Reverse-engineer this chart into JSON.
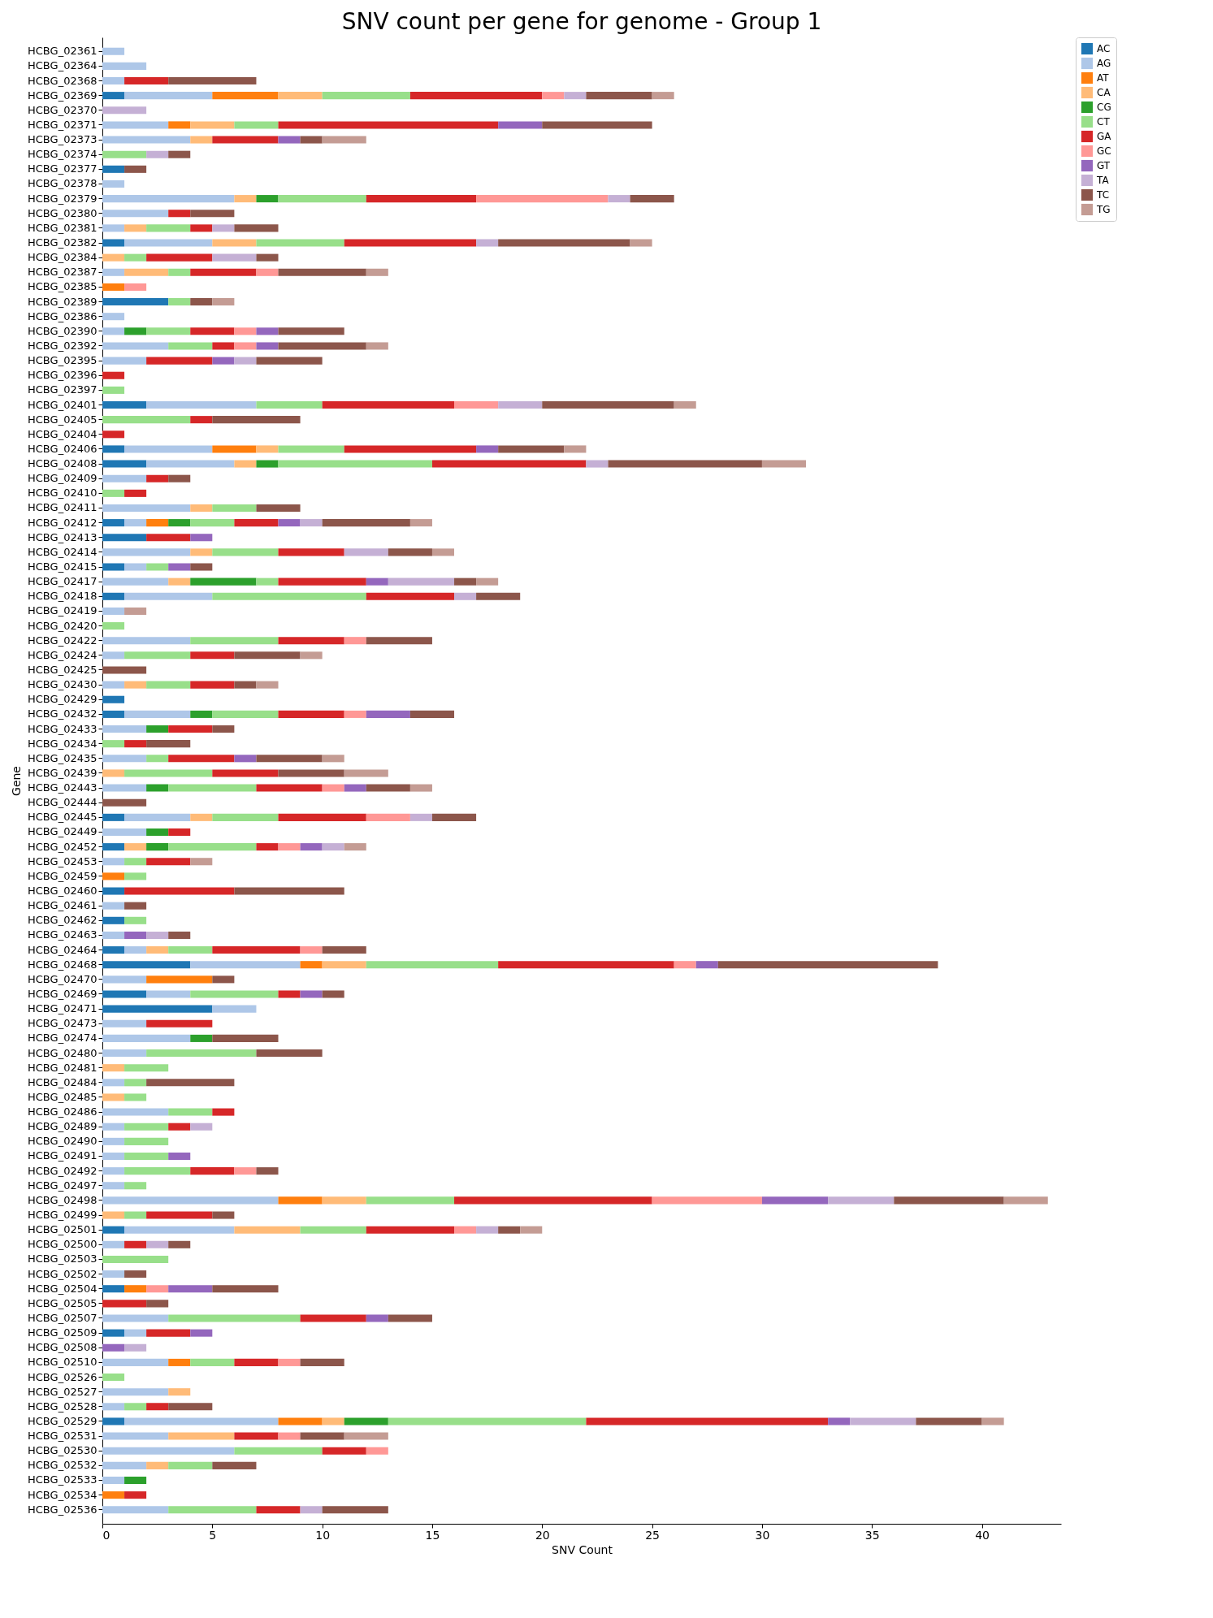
{
  "chart_data": {
    "type": "bar",
    "title": "SNV count per gene for genome - Group 1",
    "xlabel": "SNV Count",
    "ylabel": "Gene",
    "orientation": "horizontal",
    "stacked": true,
    "grid": false,
    "legend": "top right",
    "xlim": [
      0,
      43.6
    ],
    "xticks": [
      0,
      5,
      10,
      15,
      20,
      25,
      30,
      35,
      40
    ],
    "categories": [
      "HCBG_02361",
      "HCBG_02364",
      "HCBG_02368",
      "HCBG_02369",
      "HCBG_02370",
      "HCBG_02371",
      "HCBG_02373",
      "HCBG_02374",
      "HCBG_02377",
      "HCBG_02378",
      "HCBG_02379",
      "HCBG_02380",
      "HCBG_02381",
      "HCBG_02382",
      "HCBG_02384",
      "HCBG_02387",
      "HCBG_02385",
      "HCBG_02389",
      "HCBG_02386",
      "HCBG_02390",
      "HCBG_02392",
      "HCBG_02395",
      "HCBG_02396",
      "HCBG_02397",
      "HCBG_02401",
      "HCBG_02405",
      "HCBG_02404",
      "HCBG_02406",
      "HCBG_02408",
      "HCBG_02409",
      "HCBG_02410",
      "HCBG_02411",
      "HCBG_02412",
      "HCBG_02413",
      "HCBG_02414",
      "HCBG_02415",
      "HCBG_02417",
      "HCBG_02418",
      "HCBG_02419",
      "HCBG_02420",
      "HCBG_02422",
      "HCBG_02424",
      "HCBG_02425",
      "HCBG_02430",
      "HCBG_02429",
      "HCBG_02432",
      "HCBG_02433",
      "HCBG_02434",
      "HCBG_02435",
      "HCBG_02439",
      "HCBG_02443",
      "HCBG_02444",
      "HCBG_02445",
      "HCBG_02449",
      "HCBG_02452",
      "HCBG_02453",
      "HCBG_02459",
      "HCBG_02460",
      "HCBG_02461",
      "HCBG_02462",
      "HCBG_02463",
      "HCBG_02464",
      "HCBG_02468",
      "HCBG_02470",
      "HCBG_02469",
      "HCBG_02471",
      "HCBG_02473",
      "HCBG_02474",
      "HCBG_02480",
      "HCBG_02481",
      "HCBG_02484",
      "HCBG_02485",
      "HCBG_02486",
      "HCBG_02489",
      "HCBG_02490",
      "HCBG_02491",
      "HCBG_02492",
      "HCBG_02497",
      "HCBG_02498",
      "HCBG_02499",
      "HCBG_02501",
      "HCBG_02500",
      "HCBG_02503",
      "HCBG_02502",
      "HCBG_02504",
      "HCBG_02505",
      "HCBG_02507",
      "HCBG_02509",
      "HCBG_02508",
      "HCBG_02510",
      "HCBG_02526",
      "HCBG_02527",
      "HCBG_02528",
      "HCBG_02529",
      "HCBG_02531",
      "HCBG_02530",
      "HCBG_02532",
      "HCBG_02533",
      "HCBG_02534",
      "HCBG_02536"
    ],
    "series": [
      {
        "name": "AC",
        "color": "#1f77b4",
        "values": [
          null,
          null,
          null,
          1,
          null,
          null,
          null,
          null,
          1,
          null,
          null,
          null,
          null,
          1,
          null,
          null,
          null,
          3,
          null,
          null,
          null,
          null,
          null,
          null,
          2,
          null,
          null,
          1,
          2,
          null,
          null,
          null,
          1,
          2,
          null,
          1,
          null,
          1,
          null,
          null,
          null,
          null,
          null,
          null,
          1,
          1,
          null,
          null,
          null,
          null,
          null,
          null,
          1,
          null,
          1,
          null,
          null,
          1,
          null,
          1,
          null,
          1,
          4,
          null,
          2,
          5,
          null,
          null,
          null,
          null,
          null,
          null,
          null,
          null,
          null,
          null,
          null,
          null,
          null,
          null,
          1,
          null,
          null,
          null,
          1,
          null,
          null,
          1,
          null,
          null,
          null,
          null,
          null,
          1,
          null,
          null,
          null,
          null,
          null,
          null
        ]
      },
      {
        "name": "AG",
        "color": "#aec7e8",
        "values": [
          1,
          2,
          1,
          4,
          null,
          3,
          4,
          null,
          null,
          1,
          6,
          3,
          1,
          4,
          null,
          1,
          null,
          null,
          1,
          1,
          3,
          2,
          null,
          null,
          5,
          null,
          null,
          4,
          4,
          2,
          null,
          4,
          1,
          null,
          4,
          1,
          3,
          4,
          1,
          null,
          4,
          1,
          null,
          1,
          null,
          3,
          2,
          null,
          2,
          null,
          2,
          null,
          3,
          2,
          null,
          1,
          null,
          null,
          1,
          null,
          1,
          1,
          5,
          2,
          2,
          2,
          2,
          4,
          2,
          null,
          1,
          null,
          3,
          1,
          1,
          1,
          1,
          1,
          8,
          null,
          5,
          1,
          null,
          1,
          null,
          null,
          3,
          1,
          null,
          3,
          null,
          3,
          1,
          7,
          3,
          6,
          2,
          1,
          null,
          3
        ]
      },
      {
        "name": "AT",
        "color": "#ff7f0e",
        "values": [
          null,
          null,
          null,
          3,
          null,
          1,
          null,
          null,
          null,
          null,
          null,
          null,
          null,
          null,
          null,
          null,
          1,
          null,
          null,
          null,
          null,
          null,
          null,
          null,
          null,
          null,
          null,
          2,
          null,
          null,
          null,
          null,
          1,
          null,
          null,
          null,
          null,
          null,
          null,
          null,
          null,
          null,
          null,
          null,
          null,
          null,
          null,
          null,
          null,
          null,
          null,
          null,
          null,
          null,
          null,
          null,
          1,
          null,
          null,
          null,
          null,
          null,
          1,
          3,
          null,
          null,
          null,
          null,
          null,
          null,
          null,
          null,
          null,
          null,
          null,
          null,
          null,
          null,
          2,
          null,
          null,
          null,
          null,
          null,
          1,
          null,
          null,
          null,
          null,
          1,
          null,
          null,
          null,
          2,
          null,
          null,
          null,
          null,
          1,
          null
        ]
      },
      {
        "name": "CA",
        "color": "#ffbb78",
        "values": [
          null,
          null,
          null,
          2,
          null,
          2,
          1,
          null,
          null,
          null,
          1,
          null,
          1,
          2,
          1,
          2,
          null,
          null,
          null,
          null,
          null,
          null,
          null,
          null,
          null,
          null,
          null,
          1,
          1,
          null,
          null,
          1,
          null,
          null,
          1,
          null,
          1,
          null,
          null,
          null,
          null,
          null,
          null,
          1,
          null,
          null,
          null,
          null,
          null,
          1,
          null,
          null,
          1,
          null,
          1,
          null,
          null,
          null,
          null,
          null,
          null,
          1,
          2,
          null,
          null,
          null,
          null,
          null,
          null,
          1,
          null,
          1,
          null,
          null,
          null,
          null,
          null,
          null,
          2,
          1,
          3,
          null,
          null,
          null,
          null,
          null,
          null,
          null,
          null,
          null,
          null,
          1,
          null,
          1,
          3,
          null,
          1,
          null,
          null,
          null
        ]
      },
      {
        "name": "CG",
        "color": "#2ca02c",
        "values": [
          null,
          null,
          null,
          null,
          null,
          null,
          null,
          null,
          null,
          null,
          1,
          null,
          null,
          null,
          null,
          null,
          null,
          null,
          null,
          1,
          null,
          null,
          null,
          null,
          null,
          null,
          null,
          null,
          1,
          null,
          null,
          null,
          1,
          null,
          null,
          null,
          3,
          null,
          null,
          null,
          null,
          null,
          null,
          null,
          null,
          1,
          1,
          null,
          null,
          null,
          1,
          null,
          null,
          1,
          1,
          null,
          null,
          null,
          null,
          null,
          null,
          null,
          null,
          null,
          null,
          null,
          null,
          1,
          null,
          null,
          null,
          null,
          null,
          null,
          null,
          null,
          null,
          null,
          null,
          null,
          null,
          null,
          null,
          null,
          null,
          null,
          null,
          null,
          null,
          null,
          null,
          null,
          null,
          2,
          null,
          null,
          null,
          1,
          null,
          null
        ]
      },
      {
        "name": "CT",
        "color": "#98df8a",
        "values": [
          null,
          null,
          null,
          4,
          null,
          2,
          null,
          2,
          null,
          null,
          4,
          null,
          2,
          4,
          1,
          1,
          null,
          1,
          null,
          2,
          2,
          null,
          null,
          1,
          3,
          4,
          null,
          3,
          7,
          null,
          1,
          2,
          2,
          null,
          3,
          1,
          1,
          7,
          null,
          1,
          4,
          3,
          null,
          2,
          null,
          3,
          null,
          1,
          1,
          4,
          4,
          null,
          3,
          null,
          4,
          1,
          1,
          null,
          null,
          1,
          null,
          2,
          6,
          null,
          4,
          null,
          null,
          null,
          5,
          2,
          1,
          1,
          2,
          2,
          2,
          2,
          3,
          1,
          4,
          1,
          3,
          null,
          3,
          null,
          null,
          null,
          6,
          null,
          null,
          2,
          1,
          null,
          1,
          9,
          null,
          4,
          2,
          null,
          null,
          4
        ]
      },
      {
        "name": "GA",
        "color": "#d62728",
        "values": [
          null,
          null,
          2,
          6,
          null,
          10,
          3,
          null,
          null,
          null,
          5,
          1,
          1,
          6,
          3,
          3,
          null,
          null,
          null,
          2,
          1,
          3,
          1,
          null,
          6,
          1,
          1,
          6,
          7,
          1,
          1,
          null,
          2,
          2,
          3,
          null,
          4,
          4,
          null,
          null,
          3,
          2,
          null,
          2,
          null,
          3,
          2,
          1,
          3,
          3,
          3,
          null,
          4,
          1,
          1,
          2,
          null,
          5,
          null,
          null,
          null,
          4,
          8,
          null,
          1,
          null,
          3,
          null,
          null,
          null,
          null,
          null,
          1,
          1,
          null,
          null,
          2,
          null,
          9,
          3,
          4,
          1,
          null,
          null,
          null,
          2,
          3,
          2,
          null,
          2,
          null,
          null,
          1,
          11,
          2,
          2,
          null,
          null,
          1,
          2
        ]
      },
      {
        "name": "GC",
        "color": "#ff9896",
        "values": [
          null,
          null,
          null,
          1,
          null,
          null,
          null,
          null,
          null,
          null,
          6,
          null,
          null,
          null,
          null,
          1,
          1,
          null,
          null,
          1,
          1,
          null,
          null,
          null,
          2,
          null,
          null,
          null,
          null,
          null,
          null,
          null,
          null,
          null,
          null,
          null,
          null,
          null,
          null,
          null,
          1,
          null,
          null,
          null,
          null,
          1,
          null,
          null,
          null,
          null,
          1,
          null,
          2,
          null,
          1,
          null,
          null,
          null,
          null,
          null,
          null,
          1,
          1,
          null,
          null,
          null,
          null,
          null,
          null,
          null,
          null,
          null,
          null,
          null,
          null,
          null,
          1,
          null,
          5,
          null,
          1,
          null,
          null,
          null,
          1,
          null,
          null,
          null,
          null,
          1,
          null,
          null,
          null,
          null,
          1,
          1,
          null,
          null,
          null,
          null
        ]
      },
      {
        "name": "GT",
        "color": "#9467bd",
        "values": [
          null,
          null,
          null,
          null,
          null,
          2,
          1,
          null,
          null,
          null,
          null,
          null,
          null,
          null,
          null,
          null,
          null,
          null,
          null,
          1,
          1,
          1,
          null,
          null,
          null,
          null,
          null,
          1,
          null,
          null,
          null,
          null,
          1,
          1,
          null,
          1,
          1,
          null,
          null,
          null,
          null,
          null,
          null,
          null,
          null,
          2,
          null,
          null,
          1,
          null,
          1,
          null,
          null,
          null,
          1,
          null,
          null,
          null,
          null,
          null,
          1,
          null,
          1,
          null,
          1,
          null,
          null,
          null,
          null,
          null,
          null,
          null,
          null,
          null,
          null,
          1,
          null,
          null,
          3,
          null,
          null,
          null,
          null,
          null,
          2,
          null,
          1,
          1,
          1,
          null,
          null,
          null,
          null,
          1,
          null,
          null,
          null,
          null,
          null,
          null
        ]
      },
      {
        "name": "TA",
        "color": "#c5b0d5",
        "values": [
          null,
          null,
          null,
          1,
          2,
          null,
          null,
          1,
          null,
          null,
          1,
          null,
          1,
          1,
          2,
          null,
          null,
          null,
          null,
          null,
          null,
          1,
          null,
          null,
          2,
          null,
          null,
          null,
          1,
          null,
          null,
          null,
          1,
          null,
          2,
          null,
          3,
          1,
          null,
          null,
          null,
          null,
          null,
          null,
          null,
          null,
          null,
          null,
          null,
          null,
          null,
          null,
          1,
          null,
          1,
          null,
          null,
          null,
          null,
          null,
          1,
          null,
          null,
          null,
          null,
          null,
          null,
          null,
          null,
          null,
          null,
          null,
          null,
          1,
          null,
          null,
          null,
          null,
          3,
          null,
          1,
          1,
          null,
          null,
          null,
          null,
          null,
          null,
          1,
          null,
          null,
          null,
          null,
          3,
          null,
          null,
          null,
          null,
          null,
          1
        ]
      },
      {
        "name": "TC",
        "color": "#8c564b",
        "values": [
          null,
          null,
          4,
          3,
          null,
          5,
          1,
          1,
          1,
          null,
          2,
          2,
          2,
          6,
          1,
          4,
          null,
          1,
          null,
          3,
          4,
          3,
          null,
          null,
          6,
          4,
          null,
          3,
          7,
          1,
          null,
          2,
          4,
          null,
          2,
          1,
          1,
          2,
          null,
          null,
          3,
          3,
          2,
          1,
          null,
          2,
          1,
          2,
          3,
          3,
          2,
          2,
          2,
          null,
          null,
          null,
          null,
          5,
          1,
          null,
          1,
          2,
          10,
          1,
          1,
          null,
          null,
          3,
          3,
          null,
          4,
          null,
          null,
          null,
          null,
          null,
          1,
          null,
          5,
          1,
          1,
          1,
          null,
          1,
          3,
          1,
          2,
          null,
          null,
          2,
          null,
          null,
          2,
          3,
          2,
          null,
          2,
          null,
          null,
          3
        ]
      },
      {
        "name": "TG",
        "color": "#c49c94",
        "values": [
          null,
          null,
          null,
          1,
          null,
          null,
          2,
          null,
          null,
          null,
          null,
          null,
          null,
          1,
          null,
          1,
          null,
          1,
          null,
          null,
          1,
          null,
          null,
          null,
          1,
          null,
          null,
          1,
          2,
          null,
          null,
          null,
          1,
          null,
          1,
          null,
          1,
          null,
          1,
          null,
          null,
          1,
          null,
          1,
          null,
          null,
          null,
          null,
          1,
          2,
          1,
          null,
          null,
          null,
          1,
          1,
          null,
          null,
          null,
          null,
          null,
          null,
          null,
          null,
          null,
          null,
          null,
          null,
          null,
          null,
          null,
          null,
          null,
          null,
          null,
          null,
          null,
          null,
          2,
          null,
          1,
          null,
          null,
          null,
          null,
          null,
          null,
          null,
          null,
          null,
          null,
          null,
          null,
          1,
          2,
          null,
          null,
          null,
          null,
          null
        ]
      }
    ]
  }
}
